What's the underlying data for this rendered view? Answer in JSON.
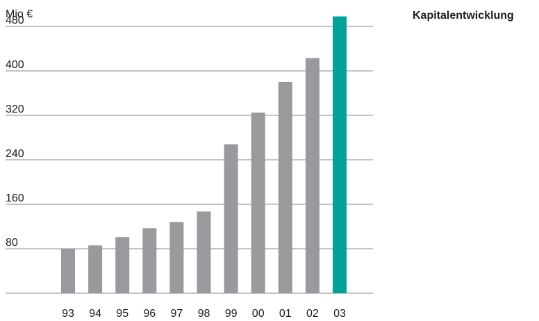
{
  "chart_data": {
    "type": "bar",
    "title": "Kapitalentwicklung",
    "unit_label": "Mio €",
    "categories": [
      "93",
      "94",
      "95",
      "96",
      "97",
      "98",
      "99",
      "00",
      "01",
      "02",
      "03"
    ],
    "values": [
      80,
      86,
      101,
      117,
      128,
      147,
      268,
      325,
      380,
      423,
      498
    ],
    "yticks": [
      80,
      160,
      240,
      320,
      400,
      480
    ],
    "ylim": [
      0,
      498
    ],
    "colors": {
      "default_bar": "#9a9a9e",
      "highlight_bar": "#00a29a",
      "grid": "#8a8a8a"
    },
    "highlight_index": 10,
    "grid": true
  }
}
